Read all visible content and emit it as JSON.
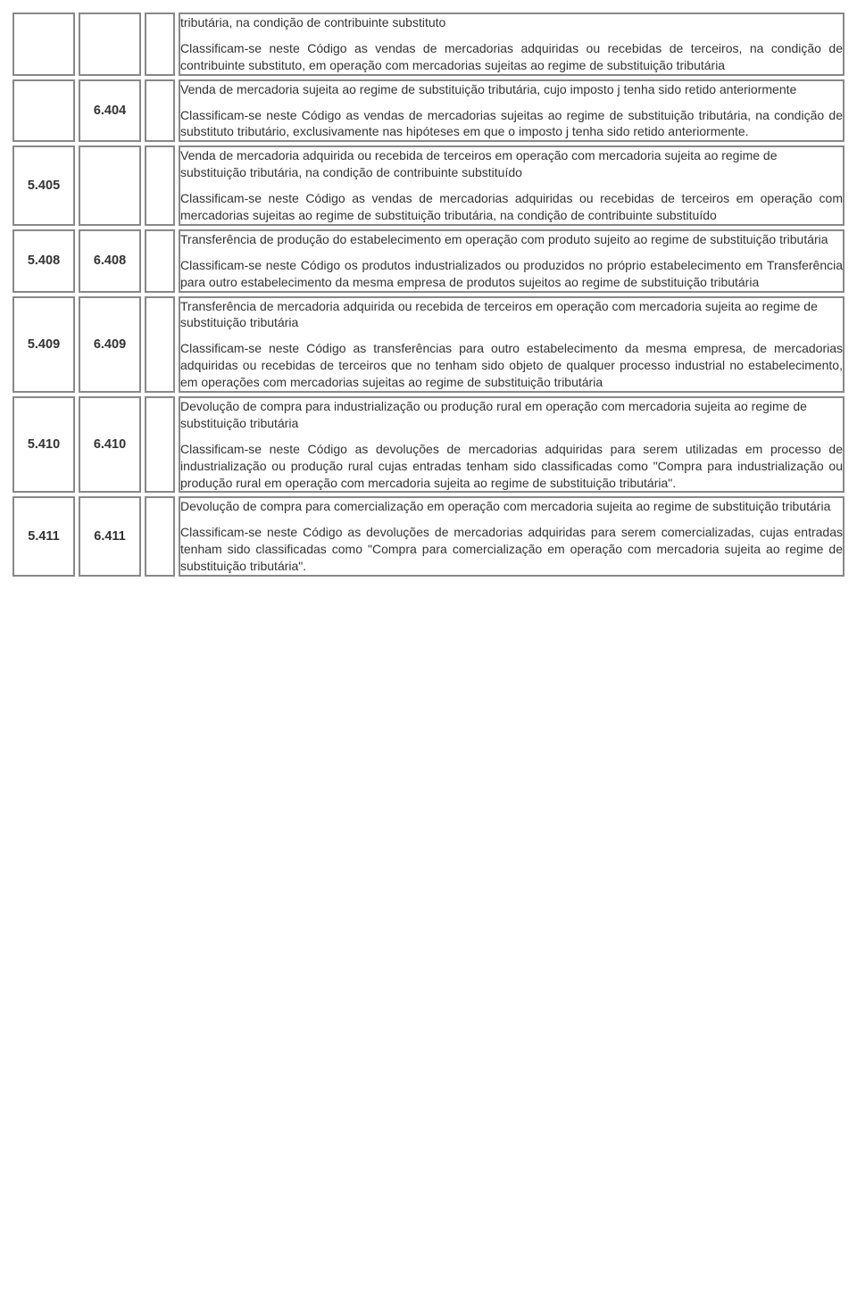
{
  "rows": [
    {
      "col1": "",
      "col2": "",
      "col3": "",
      "title": "tributária, na condição de contribuinte substituto",
      "body": "Classificam-se neste Código as vendas de mercadorias adquiridas ou recebidas de terceiros, na condição de contribuinte substituto, em operação com mercadorias sujeitas ao regime de substituição tributária"
    },
    {
      "col1": "",
      "col2": "6.404",
      "col3": "",
      "title": "Venda de mercadoria sujeita ao regime de substituição tributária, cujo imposto j tenha sido retido anteriormente",
      "body": "Classificam-se neste Código as vendas de mercadorias sujeitas ao regime de substituição tributária, na condição de substituto tributário, exclusivamente nas hipóteses em que o imposto j tenha sido retido anteriormente."
    },
    {
      "col1": "5.405",
      "col2": "",
      "col3": "",
      "title": "Venda de mercadoria adquirida ou recebida de terceiros em operação com mercadoria sujeita ao regime de substituição tributária, na condição de contribuinte substituído",
      "body": "Classificam-se neste Código as vendas de mercadorias adquiridas ou recebidas de terceiros em operação com mercadorias sujeitas ao regime de substituição tributária, na condição de contribuinte substituído"
    },
    {
      "col1": "5.408",
      "col2": "6.408",
      "col3": "",
      "title": "Transferência de produção do estabelecimento em operação com produto sujeito ao regime de substituição tributária",
      "body": "Classificam-se neste Código os produtos industrializados ou produzidos no próprio estabelecimento em Transferência para outro estabelecimento da mesma empresa de produtos sujeitos ao regime de substituição tributária"
    },
    {
      "col1": "5.409",
      "col2": "6.409",
      "col3": "",
      "title": "Transferência de mercadoria adquirida ou recebida de terceiros em operação com mercadoria sujeita ao regime de substituição tributária",
      "body": "Classificam-se neste Código as transferências para outro estabelecimento da mesma empresa, de mercadorias adquiridas ou recebidas de terceiros que no tenham sido objeto de qualquer processo industrial no estabelecimento, em operações com mercadorias sujeitas ao regime de substituição tributária"
    },
    {
      "col1": "5.410",
      "col2": "6.410",
      "col3": "",
      "title": "Devolução de compra para industrialização ou produção rural em operação com mercadoria sujeita ao regime de substituição tributária",
      "body": "Classificam-se neste Código as devoluções de mercadorias adquiridas para serem utilizadas em processo de industrialização ou produção rural cujas entradas tenham sido classificadas como \"Compra para industrialização ou produção rural em operação com mercadoria sujeita ao regime de substituição tributária\"."
    },
    {
      "col1": "5.411",
      "col2": "6.411",
      "col3": "",
      "title": "Devolução de compra para comercialização em operação com mercadoria sujeita ao regime de substituição tributária",
      "body": "Classificam-se neste Código as devoluções de mercadorias adquiridas para serem comercializadas, cujas entradas tenham sido classificadas como \"Compra para comercialização em operação com mercadoria sujeita ao regime de substituição tributária\"."
    }
  ]
}
